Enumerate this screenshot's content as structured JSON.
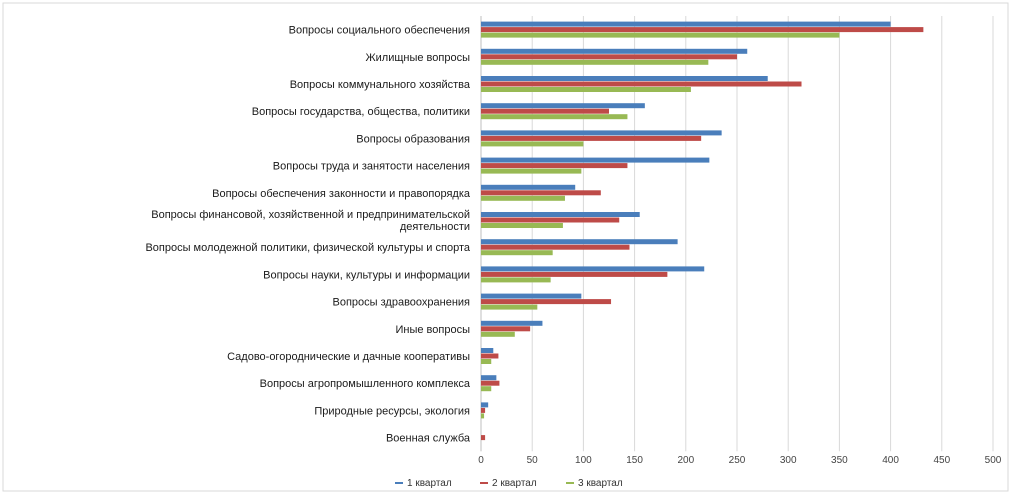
{
  "chart_data": {
    "type": "bar",
    "orientation": "horizontal",
    "categories": [
      "Вопросы социального обеспечения",
      "Жилищные вопросы",
      "Вопросы коммунального хозяйства",
      "Вопросы государства, общества, политики",
      "Вопросы образования",
      "Вопросы труда и занятости населения",
      "Вопросы обеспечения законности и правопорядка",
      "Вопросы финансовой, хозяйственной и предпринимательской деятельности",
      "Вопросы молодежной политики, физической культуры и спорта",
      "Вопросы науки, культуры и информации",
      "Вопросы здравоохранения",
      "Иные вопросы",
      "Садово-огороднические и дачные кооперативы",
      "Вопросы агропромышленного комплекса",
      "Природные ресурсы, экология",
      "Военная служба"
    ],
    "category_lines": [
      [
        "Вопросы социального обеспечения"
      ],
      [
        "Жилищные вопросы"
      ],
      [
        "Вопросы коммунального хозяйства"
      ],
      [
        "Вопросы государства, общества, политики"
      ],
      [
        "Вопросы образования"
      ],
      [
        "Вопросы труда и занятости населения"
      ],
      [
        "Вопросы обеспечения законности и правопорядка"
      ],
      [
        "Вопросы финансовой, хозяйственной и предпринимательской",
        "деятельности"
      ],
      [
        "Вопросы молодежной политики, физической культуры и спорта"
      ],
      [
        "Вопросы науки, культуры и информации"
      ],
      [
        "Вопросы здравоохранения"
      ],
      [
        "Иные вопросы"
      ],
      [
        "Садово-огороднические и дачные кооперативы"
      ],
      [
        "Вопросы агропромышленного комплекса"
      ],
      [
        "Природные ресурсы, экология"
      ],
      [
        "Военная служба"
      ]
    ],
    "series": [
      {
        "name": "1 квартал",
        "color": "#4a7ebb",
        "values": [
          400,
          260,
          280,
          160,
          235,
          223,
          92,
          155,
          192,
          218,
          98,
          60,
          12,
          15,
          7,
          0
        ]
      },
      {
        "name": "2 квартал",
        "color": "#be4b48",
        "values": [
          432,
          250,
          313,
          125,
          215,
          143,
          117,
          135,
          145,
          182,
          127,
          48,
          17,
          18,
          4,
          4
        ]
      },
      {
        "name": "3 квартал",
        "color": "#98b954",
        "values": [
          350,
          222,
          205,
          143,
          100,
          98,
          82,
          80,
          70,
          68,
          55,
          33,
          10,
          10,
          3,
          0
        ]
      }
    ],
    "xlim": [
      0,
      500
    ],
    "xticks": [
      "0",
      "50",
      "100",
      "150",
      "200",
      "250",
      "300",
      "350",
      "400",
      "450",
      "500"
    ],
    "grid": true,
    "legend_position": "bottom",
    "title": "",
    "xlabel": "",
    "ylabel": ""
  }
}
